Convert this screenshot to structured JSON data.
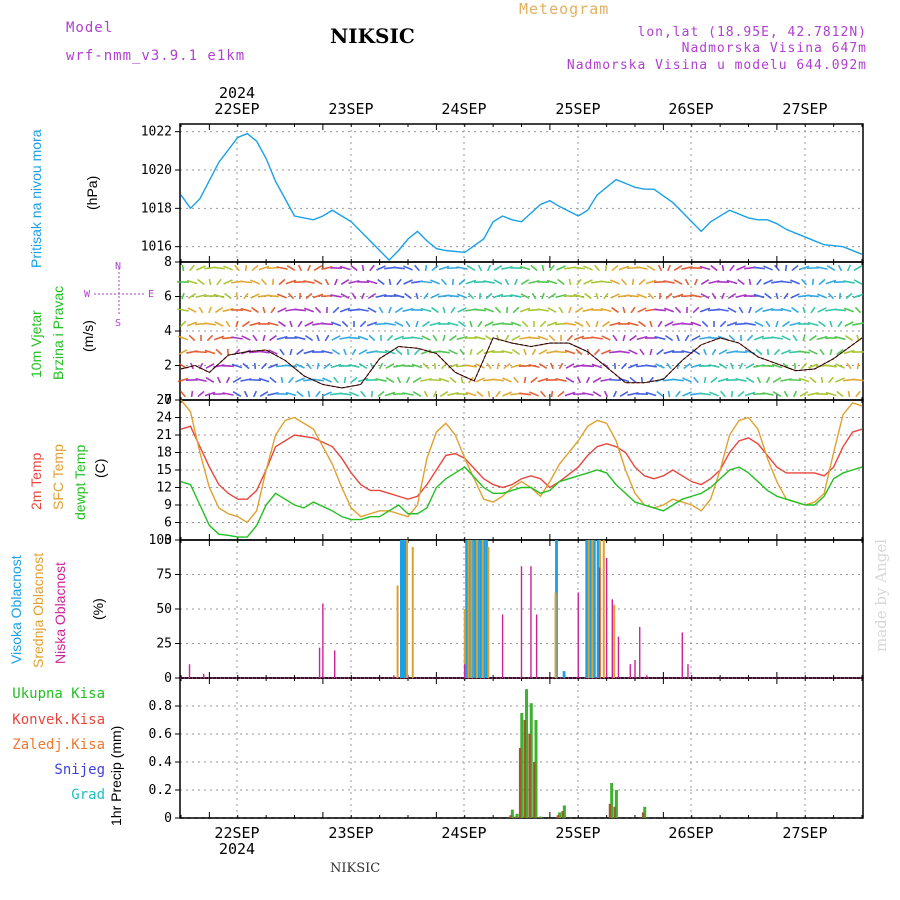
{
  "header": {
    "model_label": "Model",
    "model_name": "wrf-nmm_v3.9.1 e1km",
    "station": "NIKSIC",
    "product": "Meteogram",
    "lonlat": "lon,lat (18.95E, 42.7812N)",
    "elevation": "Nadmorska Visina 647m",
    "model_elevation": "Nadmorska Visina u modelu 644.092m"
  },
  "footer": {
    "station": "NIKSIC",
    "watermark": "made by Angel"
  },
  "colors": {
    "pressure": "#1aa0e6",
    "t2m": "#e8463c",
    "tsfc": "#e0a030",
    "dewpt": "#22c022",
    "cloud_high": "#1aa0e6",
    "cloud_mid": "#e0a030",
    "cloud_low": "#cc2299",
    "precip_total": "#40b030",
    "precip_conv": "#e83c3c",
    "purple_text": "#b040d0"
  },
  "time_axis": {
    "top_year": "2024",
    "bottom_year": "2024",
    "days": [
      "22SEP",
      "23SEP",
      "24SEP",
      "25SEP",
      "26SEP",
      "27SEP"
    ]
  },
  "panels": {
    "pressure": {
      "label": "Pritisak na nivou mora",
      "unit": "(hPa)"
    },
    "wind": {
      "label1": "10m Vjetar",
      "label2": "Brzina i Pravac",
      "unit": "(m/s)",
      "rose_n": "N",
      "rose_s": "S",
      "rose_e": "E",
      "rose_w": "W"
    },
    "temp": {
      "label1": "2m Temp",
      "label2": "SFC Temp",
      "label3": "dewpt Temp",
      "unit": "(C)"
    },
    "cloud": {
      "label1": "Visoka Oblacnost",
      "label2": "Srednja Oblacnost",
      "label3": "Niska Oblacnost",
      "unit": "(%)"
    },
    "precip": {
      "legend": [
        "Ukupna Kisa",
        "Konvek.Kisa",
        "Zaledj.Kisa",
        "Snijeg",
        "Grad"
      ],
      "unit": "1hr Precip (mm)"
    }
  },
  "chart_data": [
    {
      "type": "line",
      "title": "Pritisak na nivou mora",
      "ylabel": "(hPa)",
      "x_range_hours": [
        0,
        144
      ],
      "ylim": [
        1015.2,
        1022.4
      ],
      "yticks": [
        1016,
        1018,
        1020,
        1022
      ],
      "grid": true,
      "series": [
        {
          "name": "Pritisak na nivou mora",
          "x": [
            0,
            2,
            4,
            8,
            12,
            14,
            16,
            18,
            20,
            24,
            28,
            30,
            32,
            36,
            40,
            44,
            46,
            48,
            50,
            52,
            54,
            56,
            60,
            64,
            66,
            68,
            70,
            72,
            76,
            78,
            80,
            84,
            86,
            88,
            92,
            96,
            98,
            100,
            104,
            108,
            110,
            112,
            116,
            120,
            122,
            124,
            126,
            128,
            132,
            134,
            136,
            140,
            144
          ],
          "y": [
            1018.7,
            1018.0,
            1018.5,
            1020.4,
            1021.7,
            1021.9,
            1021.5,
            1020.6,
            1019.4,
            1017.6,
            1017.4,
            1017.6,
            1017.9,
            1017.3,
            1016.3,
            1015.3,
            1015.8,
            1016.4,
            1016.8,
            1016.3,
            1015.9,
            1015.8,
            1015.7,
            1016.4,
            1017.3,
            1017.6,
            1017.4,
            1017.3,
            1018.2,
            1018.4,
            1018.1,
            1017.6,
            1017.9,
            1018.7,
            1019.5,
            1019.1,
            1019.0,
            1019.0,
            1018.3,
            1017.3,
            1016.8,
            1017.3,
            1017.9,
            1017.5,
            1017.4,
            1017.4,
            1017.2,
            1016.9,
            1016.5,
            1016.3,
            1016.1,
            1016.0,
            1015.6
          ]
        }
      ]
    },
    {
      "type": "line",
      "title": "10m Vjetar Brzina i Pravac",
      "ylabel": "(m/s)",
      "x_range_hours": [
        0,
        144
      ],
      "ylim": [
        0,
        8
      ],
      "yticks": [
        0,
        2,
        4,
        6,
        8
      ],
      "grid": true,
      "series": [
        {
          "name": "Brzina",
          "x": [
            0,
            3,
            6,
            10,
            14,
            18,
            22,
            26,
            30,
            34,
            38,
            42,
            46,
            50,
            54,
            58,
            62,
            66,
            70,
            74,
            78,
            82,
            86,
            90,
            94,
            98,
            102,
            106,
            110,
            114,
            118,
            122,
            126,
            130,
            134,
            138,
            144
          ],
          "y": [
            1.8,
            2.0,
            1.6,
            2.6,
            2.8,
            2.9,
            2.3,
            1.4,
            0.9,
            0.7,
            0.9,
            2.4,
            3.1,
            3.0,
            2.7,
            1.6,
            1.1,
            3.6,
            3.3,
            3.1,
            3.3,
            3.3,
            2.8,
            1.9,
            1.0,
            1.0,
            1.2,
            2.3,
            3.2,
            3.6,
            3.3,
            2.5,
            2.1,
            1.7,
            1.8,
            2.4,
            3.6
          ]
        }
      ]
    },
    {
      "type": "line",
      "title": "2m Temp / SFC Temp / dewpt Temp",
      "ylabel": "(C)",
      "x_range_hours": [
        0,
        144
      ],
      "ylim": [
        3,
        27
      ],
      "yticks": [
        3,
        6,
        9,
        12,
        15,
        18,
        21,
        24,
        27
      ],
      "grid": true,
      "series": [
        {
          "name": "2m Temp",
          "x": [
            0,
            2,
            4,
            6,
            8,
            10,
            12,
            14,
            16,
            18,
            20,
            24,
            28,
            32,
            34,
            36,
            38,
            40,
            42,
            44,
            46,
            48,
            50,
            52,
            54,
            56,
            58,
            60,
            64,
            66,
            68,
            70,
            72,
            74,
            76,
            78,
            80,
            84,
            86,
            88,
            90,
            92,
            94,
            96,
            98,
            100,
            102,
            104,
            106,
            108,
            110,
            112,
            114,
            116,
            118,
            120,
            122,
            124,
            126,
            128,
            130,
            132,
            134,
            136,
            138,
            140,
            142,
            144
          ],
          "y": [
            22.0,
            22.5,
            19.0,
            15.5,
            12.5,
            11.0,
            10.0,
            10.0,
            11.5,
            15.0,
            19.0,
            21.0,
            20.5,
            19.0,
            17.0,
            14.5,
            12.5,
            11.5,
            11.5,
            11.0,
            10.5,
            10.0,
            10.5,
            12.5,
            15.0,
            17.5,
            17.8,
            17.0,
            13.5,
            12.5,
            12.0,
            12.5,
            13.5,
            14.0,
            13.5,
            12.0,
            13.0,
            15.5,
            17.5,
            19.0,
            19.5,
            19.0,
            18.0,
            15.5,
            14.0,
            13.5,
            14.0,
            15.0,
            14.0,
            13.0,
            12.5,
            13.5,
            15.0,
            18.0,
            20.0,
            20.5,
            19.5,
            17.5,
            15.5,
            14.5,
            14.5,
            14.5,
            14.5,
            14.0,
            15.5,
            19.0,
            21.5,
            22.0
          ]
        },
        {
          "name": "SFC Temp",
          "x": [
            0,
            2,
            4,
            6,
            8,
            10,
            12,
            14,
            16,
            18,
            20,
            22,
            24,
            28,
            32,
            34,
            36,
            38,
            40,
            42,
            44,
            46,
            48,
            50,
            52,
            54,
            56,
            58,
            60,
            64,
            66,
            68,
            70,
            72,
            74,
            76,
            78,
            80,
            84,
            86,
            88,
            90,
            92,
            94,
            96,
            98,
            100,
            102,
            104,
            106,
            108,
            110,
            112,
            114,
            116,
            118,
            120,
            122,
            124,
            126,
            128,
            130,
            132,
            134,
            136,
            138,
            140,
            142,
            144
          ],
          "y": [
            27.0,
            25.0,
            18.0,
            12.0,
            8.5,
            7.5,
            7.0,
            6.0,
            8.0,
            15.0,
            21.0,
            23.5,
            24.0,
            22.0,
            16.0,
            12.0,
            8.5,
            7.0,
            7.5,
            8.0,
            8.0,
            7.5,
            7.0,
            9.0,
            17.0,
            21.5,
            23.0,
            21.0,
            17.0,
            10.0,
            9.5,
            10.5,
            12.0,
            13.0,
            12.0,
            10.5,
            13.0,
            16.0,
            20.0,
            22.5,
            23.5,
            23.0,
            20.0,
            15.0,
            11.0,
            9.0,
            8.5,
            9.0,
            10.0,
            9.5,
            9.0,
            8.0,
            10.0,
            15.0,
            21.0,
            23.5,
            24.0,
            22.0,
            17.0,
            13.0,
            10.0,
            9.5,
            9.0,
            9.5,
            11.0,
            18.0,
            24.5,
            26.5,
            26.0
          ]
        },
        {
          "name": "dewpt Temp",
          "x": [
            0,
            2,
            4,
            6,
            8,
            10,
            12,
            14,
            16,
            18,
            20,
            22,
            24,
            26,
            28,
            32,
            34,
            36,
            38,
            40,
            42,
            44,
            46,
            48,
            50,
            52,
            54,
            56,
            58,
            60,
            64,
            66,
            68,
            70,
            72,
            74,
            76,
            78,
            80,
            84,
            86,
            88,
            90,
            92,
            94,
            96,
            98,
            100,
            102,
            104,
            106,
            108,
            110,
            112,
            114,
            116,
            118,
            120,
            122,
            124,
            126,
            128,
            130,
            132,
            134,
            136,
            138,
            140,
            142,
            144
          ],
          "y": [
            13.0,
            12.5,
            9.0,
            5.5,
            4.0,
            3.8,
            3.5,
            3.5,
            5.5,
            9.0,
            11.0,
            10.0,
            9.0,
            8.5,
            9.5,
            8.0,
            7.0,
            6.5,
            6.5,
            7.0,
            7.0,
            8.0,
            9.0,
            7.5,
            7.5,
            8.5,
            12.0,
            13.5,
            14.5,
            15.5,
            12.0,
            11.0,
            11.0,
            11.5,
            12.0,
            12.0,
            11.0,
            11.5,
            13.0,
            14.0,
            14.5,
            15.0,
            14.5,
            12.5,
            11.0,
            9.5,
            9.0,
            8.5,
            8.0,
            9.0,
            10.0,
            10.5,
            11.0,
            12.0,
            13.5,
            15.0,
            15.5,
            14.5,
            13.0,
            11.5,
            10.5,
            10.0,
            9.5,
            9.0,
            9.0,
            10.5,
            13.5,
            14.5,
            15.0,
            15.5
          ]
        }
      ]
    },
    {
      "type": "bar",
      "title": "Oblacnost",
      "ylabel": "(%)",
      "x_range_hours": [
        0,
        144
      ],
      "ylim": [
        0,
        100
      ],
      "yticks": [
        0,
        25,
        50,
        75,
        100
      ],
      "grid": true,
      "series": [
        {
          "name": "Visoka Oblacnost",
          "x": [
            46.2,
            46.6,
            47.0,
            47.4,
            60.4,
            61.0,
            61.6,
            62.2,
            62.8,
            63.4,
            64.0,
            64.6,
            79.4,
            81.0,
            85.0,
            85.8,
            86.6,
            87.4,
            88.2
          ],
          "y": [
            0,
            100,
            100,
            100,
            100,
            100,
            100,
            100,
            100,
            100,
            100,
            100,
            100,
            5,
            0,
            100,
            100,
            100,
            100
          ]
        },
        {
          "name": "Srednja Oblacnost",
          "x": [
            45.8,
            47.8,
            49.0,
            60.0,
            60.8,
            61.4,
            62.6,
            63.8,
            65.0,
            79.2,
            86.2,
            87.0,
            88.6,
            89.4,
            91.6
          ],
          "y": [
            67,
            100,
            95,
            50,
            100,
            100,
            100,
            100,
            95,
            62,
            100,
            100,
            100,
            100,
            53
          ]
        },
        {
          "name": "Niska Oblacnost",
          "x": [
            1.8,
            4.8,
            29.3,
            30.0,
            32.5,
            45.0,
            60.0,
            68.0,
            72.0,
            74.0,
            75.2,
            84.0,
            88.5,
            90.0,
            91.2,
            92.5,
            95.0,
            96.0,
            97.0,
            98.5,
            106.0,
            107.2
          ],
          "y": [
            10,
            3,
            22,
            54,
            20,
            2,
            10,
            46,
            81,
            81,
            46,
            62,
            80,
            87,
            57,
            30,
            10,
            13,
            37,
            2,
            33,
            10
          ]
        }
      ]
    },
    {
      "type": "bar",
      "title": "1hr Precip",
      "ylabel": "1hr Precip (mm)",
      "x_range_hours": [
        0,
        144
      ],
      "ylim": [
        0,
        1
      ],
      "yticks": [
        0,
        0.2,
        0.4,
        0.6,
        0.8
      ],
      "grid": true,
      "series": [
        {
          "name": "Ukupna Kisa",
          "x": [
            70,
            71,
            72,
            73,
            74,
            75,
            76,
            80,
            81,
            91,
            92,
            98
          ],
          "y": [
            0.06,
            0.03,
            0.75,
            0.92,
            0.82,
            0.7,
            0.01,
            0.04,
            0.09,
            0.25,
            0.2,
            0.08
          ]
        },
        {
          "name": "Konvek.Kisa",
          "x": [
            70,
            71,
            72,
            73,
            74,
            75,
            76,
            80,
            81,
            91,
            92,
            98
          ],
          "y": [
            0.02,
            0.01,
            0.5,
            0.7,
            0.6,
            0.4,
            0.005,
            0.02,
            0.05,
            0.1,
            0.08,
            0.04
          ]
        }
      ]
    }
  ]
}
